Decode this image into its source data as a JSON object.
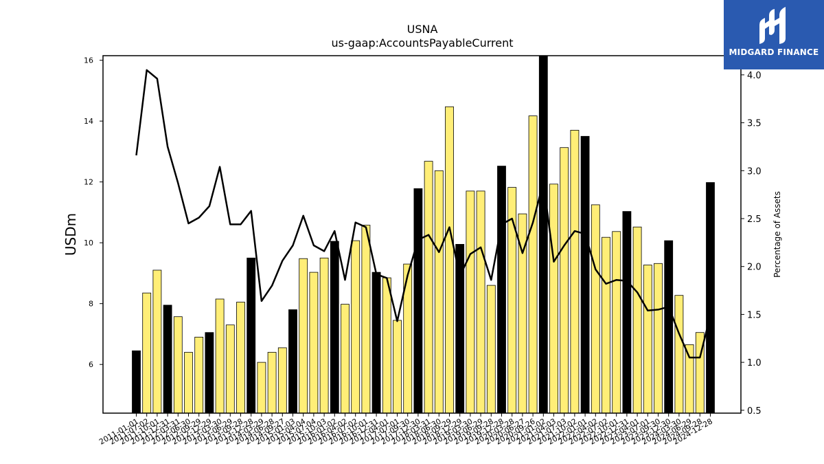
{
  "brand": {
    "name": "MIDGARD FINANCE",
    "logo_icon": "midgard-mark-icon",
    "color": "#2a5ab0"
  },
  "chart_data": {
    "type": "bar",
    "title": "USNA",
    "subtitle": "us-gaap:AccountsPayableCurrent",
    "ylabel": "USDm",
    "y2label": "Percentage of Assets",
    "ylim": [
      4.4,
      16.15
    ],
    "y2lim": [
      0.47,
      4.2
    ],
    "yticks": [
      "6",
      "8",
      "10",
      "12",
      "14",
      "16"
    ],
    "y2ticks": [
      "0.5",
      "1.0",
      "1.5",
      "2.0",
      "2.5",
      "3.0",
      "3.5",
      "4.0"
    ],
    "colors": {
      "annual": "#000000",
      "quarter": "#ffee77",
      "line": "#000000"
    },
    "categories": [
      "2011-01-01",
      "2011-07-02",
      "2011-10-01",
      "2011-12-31",
      "2012-03-31",
      "2012-06-30",
      "2012-09-29",
      "2012-12-29",
      "2013-03-30",
      "2013-06-29",
      "2013-09-28",
      "2013-12-28",
      "2014-03-29",
      "2014-06-28",
      "2014-09-27",
      "2015-01-03",
      "2015-04-04",
      "2015-07-04",
      "2015-10-03",
      "2016-01-02",
      "2016-04-02",
      "2016-07-02",
      "2016-10-01",
      "2016-12-31",
      "2017-04-01",
      "2017-07-01",
      "2017-09-30",
      "2017-12-30",
      "2018-03-31",
      "2018-06-30",
      "2018-09-29",
      "2018-12-29",
      "2019-03-30",
      "2019-06-29",
      "2019-09-28",
      "2019-12-28",
      "2020-03-28",
      "2020-06-27",
      "2020-09-26",
      "2021-01-02",
      "2021-04-03",
      "2021-07-03",
      "2021-10-02",
      "2022-01-01",
      "2022-04-02",
      "2022-07-02",
      "2022-10-01",
      "2022-12-31",
      "2023-04-01",
      "2023-07-01",
      "2023-09-30",
      "2023-12-30",
      "2024-03-30",
      "2024-06-29",
      "2024-09-28",
      "2024-12-28"
    ],
    "tick_labels": [
      "2011-01-01",
      "2011-07-02",
      "2011-10-01",
      "2011-12-31",
      "2012-03-31",
      "2012-06-30",
      "2012-09-29",
      "2012-12-29",
      "2013-03-30",
      "2013-06-29",
      "2013-09-28",
      "2013-12-28",
      "2014-03-29",
      "2014-06-28",
      "2014-09-27",
      "2015-01-03",
      "2015-04-04",
      "2015-07-04",
      "2015-10-03",
      "2016-01-02",
      "2016-04-02",
      "2016-07-02",
      "2016-10-01",
      "2016-12-31",
      "2017-04-01",
      "2017-07-01",
      "2017-09-30",
      "2017-12-30",
      "2018-03-31",
      "2018-06-30",
      "2018-09-29",
      "2018-12-29",
      "2019-03-30",
      "2019-06-29",
      "2019-09-28",
      "2019-12-28",
      "2020-03-28",
      "2020-06-27",
      "2020-09-26",
      "2021-01-02",
      "2021-04-03",
      "2021-07-03",
      "2021-10-02",
      "2022-01-01",
      "2022-04-02",
      "2022-07-02",
      "2022-10-01",
      "2022-12-31",
      "2023-04-01",
      "2023-07-01",
      "2023-09-30",
      "2023-12-30",
      "2024-03-30",
      "2024-06-29",
      "2024-09-28",
      "2024-12-28"
    ],
    "annual": [
      true,
      false,
      false,
      true,
      false,
      false,
      false,
      true,
      false,
      false,
      false,
      true,
      false,
      false,
      false,
      true,
      false,
      false,
      false,
      true,
      false,
      false,
      false,
      true,
      false,
      false,
      false,
      true,
      false,
      false,
      false,
      true,
      false,
      false,
      false,
      true,
      false,
      false,
      false,
      true,
      false,
      false,
      false,
      true,
      false,
      false,
      false,
      true,
      false,
      false,
      false,
      true,
      false,
      false,
      false,
      true
    ],
    "values": [
      6.45,
      8.35,
      9.1,
      7.95,
      7.57,
      6.4,
      6.9,
      7.05,
      8.15,
      7.3,
      8.05,
      9.5,
      6.07,
      6.4,
      6.55,
      7.8,
      9.48,
      9.03,
      9.5,
      10.05,
      7.98,
      10.07,
      10.58,
      9.03,
      8.85,
      7.45,
      9.3,
      11.78,
      12.68,
      12.37,
      14.47,
      9.95,
      11.7,
      11.7,
      8.6,
      12.52,
      11.82,
      10.95,
      14.17,
      16.15,
      11.93,
      13.13,
      13.7,
      13.5,
      11.25,
      10.18,
      10.37,
      11.03,
      10.52,
      9.27,
      9.32,
      10.07,
      8.27,
      6.65,
      7.05,
      11.98
    ],
    "line": {
      "name": "",
      "values": [
        3.16,
        4.05,
        3.96,
        3.25,
        2.87,
        2.45,
        2.51,
        2.63,
        3.04,
        2.44,
        2.44,
        2.58,
        1.64,
        1.8,
        2.06,
        2.22,
        2.53,
        2.22,
        2.16,
        2.37,
        1.86,
        2.46,
        2.41,
        1.92,
        1.88,
        1.43,
        1.91,
        2.28,
        2.33,
        2.15,
        2.41,
        1.9,
        2.13,
        2.2,
        1.86,
        2.44,
        2.5,
        2.14,
        2.46,
        2.88,
        2.05,
        2.22,
        2.37,
        2.34,
        1.97,
        1.82,
        1.86,
        1.85,
        1.73,
        1.54,
        1.55,
        1.58,
        1.3,
        1.05,
        1.05,
        1.49
      ]
    },
    "grid": false,
    "legend": "none"
  }
}
